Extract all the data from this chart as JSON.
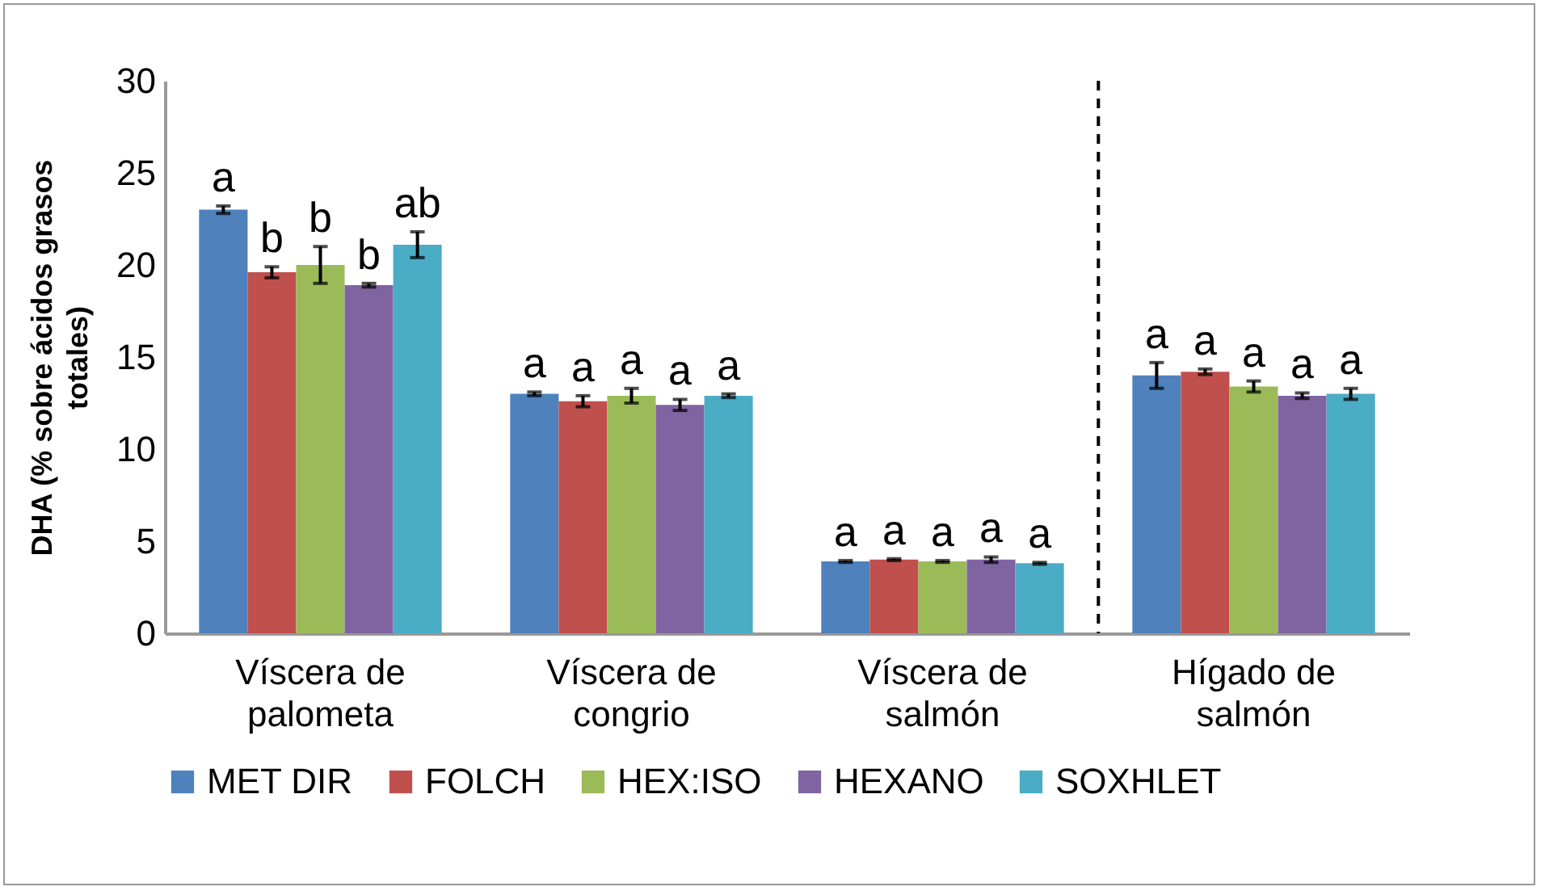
{
  "chart_data": {
    "type": "bar",
    "ylabel": "DHA (% sobre ácidos grasos totales)",
    "categories": [
      "Víscera de palometa",
      "Víscera de congrio",
      "Víscera de salmón",
      "Hígado de salmón"
    ],
    "series": [
      {
        "name": "MET DIR",
        "color": "#4f81bd",
        "values": [
          23.0,
          13.0,
          3.9,
          14.0
        ],
        "errors": [
          0.2,
          0.1,
          0.05,
          0.7
        ],
        "value_labels": [
          "a",
          "a",
          "a",
          "a"
        ]
      },
      {
        "name": "FOLCH",
        "color": "#c0504d",
        "values": [
          19.6,
          12.6,
          4.0,
          14.2
        ],
        "errors": [
          0.3,
          0.3,
          0.05,
          0.15
        ],
        "value_labels": [
          "b",
          "a",
          "a",
          "a"
        ]
      },
      {
        "name": "HEX:ISO",
        "color": "#9bbb59",
        "values": [
          20.0,
          12.9,
          3.9,
          13.4
        ],
        "errors": [
          1.0,
          0.4,
          0.05,
          0.3
        ],
        "value_labels": [
          "b",
          "a",
          "a",
          "a"
        ]
      },
      {
        "name": "HEXANO",
        "color": "#8064a2",
        "values": [
          18.9,
          12.4,
          4.0,
          12.9
        ],
        "errors": [
          0.1,
          0.3,
          0.15,
          0.15
        ],
        "value_labels": [
          "b",
          "a",
          "a",
          "a"
        ]
      },
      {
        "name": "SOXHLET",
        "color": "#4bacc6",
        "values": [
          21.1,
          12.9,
          3.8,
          13.0
        ],
        "errors": [
          0.7,
          0.1,
          0.05,
          0.3
        ],
        "value_labels": [
          "ab",
          "a",
          "a",
          "a"
        ]
      }
    ],
    "ylim": [
      0,
      30
    ],
    "yticks": [
      0,
      5,
      10,
      15,
      20,
      25,
      30
    ],
    "grid": false,
    "legend": "bottom"
  }
}
